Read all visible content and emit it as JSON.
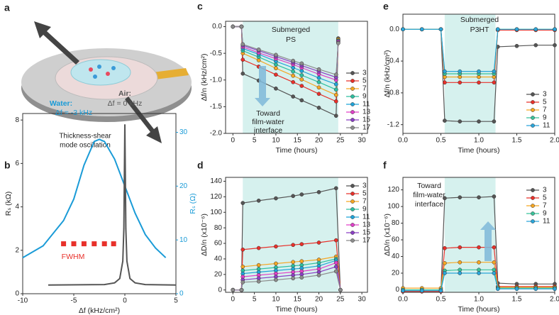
{
  "schematic": {
    "panel": "a",
    "caption": [
      "Thickness-shear",
      "mode oscillation"
    ]
  },
  "chart_data": [
    {
      "type": "line",
      "panel": "b",
      "xlabel": "Δf (kHz/cm²)",
      "ylabel": "Rₛ (kΩ)",
      "y2label": "Rₛ (Ω)",
      "xlim": [
        -10,
        5
      ],
      "xticks": [
        -10,
        -5,
        0,
        5
      ],
      "ylim": [
        0,
        8.3
      ],
      "yticks": [
        0,
        2,
        4,
        6,
        8
      ],
      "y2lim": [
        0,
        33.5
      ],
      "y2ticks": [
        0,
        10,
        20,
        30
      ],
      "markers": false,
      "legend": false,
      "series": [
        {
          "color": "#1a9bd7",
          "axis": "y2",
          "x": [
            -10,
            -8,
            -6,
            -5,
            -4,
            -3,
            -2.5,
            -2,
            -1,
            0,
            1,
            2,
            3,
            4
          ],
          "values": [
            6.7,
            8.9,
            13.6,
            17.6,
            23.9,
            28.3,
            28.7,
            28.3,
            25,
            20,
            15,
            11,
            8.5,
            6.7
          ]
        },
        {
          "color": "#555555",
          "x": [
            -7.5,
            -2,
            -1,
            -0.5,
            -0.2,
            -0.1,
            0,
            0.1,
            0.2,
            0.5,
            1,
            2,
            5
          ],
          "values": [
            0.4,
            0.42,
            0.5,
            0.7,
            1.5,
            3,
            7.8,
            3,
            1.5,
            0.7,
            0.5,
            0.42,
            0.4
          ]
        }
      ],
      "fwhm_marks": {
        "color": "#e8302a",
        "x": [
          -6,
          -5,
          -4,
          -3,
          -2,
          -1.1
        ],
        "y": 2.3
      },
      "annotations": [
        "Air:",
        "Δf = 0 kHz",
        "Water:",
        "Δf = -3 kHz",
        "FWHM"
      ]
    },
    {
      "type": "line",
      "panel": "c",
      "xlabel": "Time (hours)",
      "ylabel": "Δf/n (kHz/cm²)",
      "xlim": [
        -1.7,
        31.3
      ],
      "xticks": [
        0,
        5,
        10,
        15,
        20,
        25,
        30
      ],
      "ylim": [
        -2.0,
        0.1
      ],
      "yticks": [
        {
          "value": 0,
          "label": "0.0"
        },
        {
          "value": -0.5,
          "label": "-0.5"
        },
        {
          "value": -1,
          "label": "-1.0"
        },
        {
          "value": -1.5,
          "label": "-1.5"
        },
        {
          "value": -2,
          "label": "-2.0"
        }
      ],
      "shade": [
        2.3,
        24.5
      ],
      "markers": true,
      "legend": true,
      "x": [
        0,
        2,
        2.3,
        6,
        10,
        14,
        16,
        20,
        24,
        24.5
      ],
      "series": [
        {
          "name": "3",
          "color": "#555555",
          "values": [
            0,
            0,
            -0.88,
            -1.01,
            -1.16,
            -1.31,
            -1.38,
            -1.52,
            -1.67,
            -0.22
          ]
        },
        {
          "name": "5",
          "color": "#e8302a",
          "values": [
            0,
            0,
            -0.62,
            -0.75,
            -0.9,
            -1.04,
            -1.11,
            -1.26,
            -1.4,
            -0.25
          ]
        },
        {
          "name": "7",
          "color": "#f5a623",
          "values": [
            0,
            0,
            -0.5,
            -0.63,
            -0.78,
            -0.92,
            -0.99,
            -1.14,
            -1.28,
            -0.24
          ]
        },
        {
          "name": "9",
          "color": "#2dbf9f",
          "values": [
            0,
            0,
            -0.45,
            -0.57,
            -0.71,
            -0.84,
            -0.91,
            -1.04,
            -1.18,
            -0.26
          ]
        },
        {
          "name": "11",
          "color": "#1fa3d8",
          "values": [
            0,
            0,
            -0.41,
            -0.52,
            -0.65,
            -0.77,
            -0.83,
            -0.96,
            -1.08,
            -0.27
          ]
        },
        {
          "name": "13",
          "color": "#e040c8",
          "values": [
            0,
            0,
            -0.38,
            -0.49,
            -0.6,
            -0.71,
            -0.77,
            -0.89,
            -1.0,
            -0.28
          ]
        },
        {
          "name": "15",
          "color": "#8a3fc4",
          "values": [
            0,
            0,
            -0.35,
            -0.45,
            -0.56,
            -0.67,
            -0.73,
            -0.84,
            -0.95,
            -0.3
          ]
        },
        {
          "name": "17",
          "color": "#8c8c8c",
          "values": [
            0,
            0,
            -0.33,
            -0.43,
            -0.53,
            -0.64,
            -0.69,
            -0.8,
            -0.9,
            -0.31
          ]
        }
      ],
      "annotations": [
        "Submerged",
        "PS",
        "Toward",
        "film-water",
        "interface"
      ]
    },
    {
      "type": "line",
      "panel": "d",
      "xlabel": "Time (hours)",
      "ylabel": "ΔD/n (x10⁻⁶)",
      "xlim": [
        -1.7,
        31.3
      ],
      "xticks": [
        0,
        5,
        10,
        15,
        20,
        25,
        30
      ],
      "ylim": [
        -3,
        145
      ],
      "yticks": [
        0,
        20,
        40,
        60,
        80,
        100,
        120,
        140
      ],
      "shade": [
        2.3,
        24.5
      ],
      "markers": true,
      "legend": true,
      "x": [
        0,
        2,
        2.3,
        6,
        10,
        14,
        16,
        20,
        24,
        25
      ],
      "series": [
        {
          "name": "3",
          "color": "#555555",
          "values": [
            0,
            0,
            112,
            115,
            118,
            121,
            123,
            126,
            131,
            0
          ]
        },
        {
          "name": "5",
          "color": "#e8302a",
          "values": [
            0,
            0,
            52,
            54,
            56,
            58,
            59,
            61,
            64,
            0
          ]
        },
        {
          "name": "7",
          "color": "#f5a623",
          "values": [
            0,
            0,
            30,
            32,
            34,
            36,
            37,
            39,
            43,
            0
          ]
        },
        {
          "name": "9",
          "color": "#2dbf9f",
          "values": [
            0,
            0,
            25,
            27,
            29,
            31,
            32,
            35,
            40,
            0
          ]
        },
        {
          "name": "11",
          "color": "#1fa3d8",
          "values": [
            0,
            0,
            21,
            23,
            25,
            27,
            28,
            31,
            38,
            0
          ]
        },
        {
          "name": "13",
          "color": "#e040c8",
          "values": [
            0,
            0,
            17,
            19,
            21,
            23,
            24,
            27,
            35,
            0
          ]
        },
        {
          "name": "15",
          "color": "#8a3fc4",
          "values": [
            0,
            0,
            13,
            15,
            17,
            19,
            20,
            23,
            30,
            0
          ]
        },
        {
          "name": "17",
          "color": "#8c8c8c",
          "values": [
            0,
            0,
            10,
            11,
            13,
            15,
            16,
            19,
            24,
            0
          ]
        }
      ],
      "annotations": []
    },
    {
      "type": "line",
      "panel": "e",
      "xlabel": "Time (hours)",
      "ylabel": "Δf/n (kHz/cm²)",
      "xlim": [
        0,
        2
      ],
      "xticks": [
        {
          "value": 0,
          "label": "0.0"
        },
        {
          "value": 0.5,
          "label": "0.5"
        },
        {
          "value": 1,
          "label": "1.0"
        },
        {
          "value": 1.5,
          "label": "1.5"
        },
        {
          "value": 2,
          "label": "2.0"
        }
      ],
      "ylim": [
        -1.31,
        0.19
      ],
      "yticks": [
        {
          "value": 0,
          "label": "0.0"
        },
        {
          "value": -0.4,
          "label": "-0.4"
        },
        {
          "value": -0.8,
          "label": "-0.8"
        },
        {
          "value": -1.2,
          "label": "-1.2"
        }
      ],
      "shade": [
        0.55,
        1.22
      ],
      "markers": true,
      "legend": true,
      "x": [
        0,
        0.25,
        0.5,
        0.55,
        0.75,
        1.0,
        1.2,
        1.25,
        1.5,
        1.75,
        2.0
      ],
      "series": [
        {
          "name": "3",
          "color": "#555555",
          "values": [
            0,
            0,
            0,
            -1.15,
            -1.16,
            -1.16,
            -1.16,
            -0.22,
            -0.21,
            -0.2,
            -0.2
          ]
        },
        {
          "name": "5",
          "color": "#e8302a",
          "values": [
            0,
            0,
            0,
            -0.67,
            -0.67,
            -0.67,
            -0.67,
            -0.01,
            -0.01,
            -0.01,
            -0.01
          ]
        },
        {
          "name": "7",
          "color": "#f5a623",
          "values": [
            0,
            0,
            0,
            -0.6,
            -0.6,
            -0.6,
            -0.6,
            0,
            0,
            0,
            0
          ]
        },
        {
          "name": "9",
          "color": "#39c29a",
          "values": [
            0,
            0,
            0,
            -0.56,
            -0.56,
            -0.56,
            -0.56,
            0,
            0,
            0,
            0
          ]
        },
        {
          "name": "11",
          "color": "#2aa5d9",
          "values": [
            0,
            0,
            0,
            -0.53,
            -0.53,
            -0.53,
            -0.53,
            0,
            0,
            0,
            0
          ]
        }
      ],
      "annotations": [
        "Submerged",
        "P3HT"
      ]
    },
    {
      "type": "line",
      "panel": "f",
      "xlabel": "Time (hours)",
      "ylabel": "ΔD/n (x10⁻⁶)",
      "xlim": [
        0,
        2
      ],
      "xticks": [
        {
          "value": 0,
          "label": "0.0"
        },
        {
          "value": 0.5,
          "label": "0.5"
        },
        {
          "value": 1,
          "label": "1.0"
        },
        {
          "value": 1.5,
          "label": "1.5"
        },
        {
          "value": 2,
          "label": "2.0"
        }
      ],
      "ylim": [
        -3,
        135
      ],
      "yticks": [
        0,
        20,
        40,
        60,
        80,
        100,
        120
      ],
      "shade": [
        0.55,
        1.22
      ],
      "markers": true,
      "legend": true,
      "x": [
        0,
        0.25,
        0.5,
        0.55,
        0.75,
        1.0,
        1.2,
        1.25,
        1.5,
        1.75,
        2.0
      ],
      "series": [
        {
          "name": "3",
          "color": "#555555",
          "values": [
            -2,
            -2,
            -2,
            110,
            111,
            111,
            112,
            8,
            7,
            7,
            7
          ]
        },
        {
          "name": "5",
          "color": "#e8302a",
          "values": [
            -2,
            -2,
            -2,
            50,
            51,
            51,
            51,
            4,
            4,
            4,
            4
          ]
        },
        {
          "name": "7",
          "color": "#f5a623",
          "values": [
            2,
            2,
            2,
            32,
            33,
            33,
            33,
            3,
            3,
            3,
            3
          ]
        },
        {
          "name": "9",
          "color": "#39c29a",
          "values": [
            0,
            0,
            0,
            23,
            24,
            24,
            24,
            2,
            2,
            2,
            2
          ]
        },
        {
          "name": "11",
          "color": "#2aa5d9",
          "values": [
            -1,
            -1,
            -1,
            20,
            20,
            20,
            20,
            1,
            1,
            1,
            1
          ]
        }
      ],
      "annotations": [
        "Toward",
        "film-water",
        "interface"
      ]
    }
  ]
}
